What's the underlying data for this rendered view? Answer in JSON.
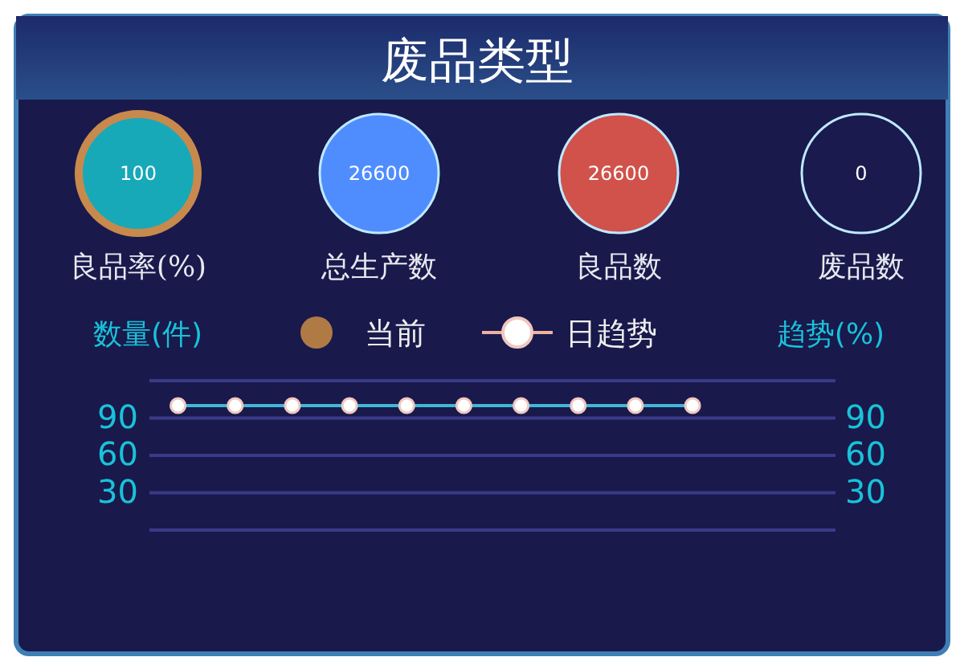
{
  "chart_data": [
    {
      "type": "other",
      "title": "废品类型",
      "categories": [
        "良品率(%)",
        "总生产数",
        "良品数",
        "废品数"
      ],
      "values": [
        100,
        26600,
        26600,
        0
      ],
      "data_labels": true,
      "colors": [
        "#17a9b8",
        "#4f8dff",
        "#d0524a",
        "#1a1a4e"
      ]
    },
    {
      "type": "line",
      "ylabel": "数量(件)",
      "y2label": "趋势(%)",
      "categories": [
        null,
        null,
        null,
        null,
        null,
        null,
        null,
        null,
        null,
        null,
        null,
        null
      ],
      "ylim": [
        0,
        120
      ],
      "yticks": [
        {
          "value": 0,
          "label": null
        },
        30,
        60,
        90,
        {
          "value": 120,
          "label": null
        }
      ],
      "y2lim": [
        0,
        120
      ],
      "y2ticks": [
        30,
        60,
        90
      ],
      "grid": "y",
      "legend": "top",
      "marker": "circle",
      "series": [
        {
          "name": "当前",
          "type": "bar",
          "color": "#b07a45",
          "values": [
            null,
            null,
            null,
            null,
            null,
            null,
            null,
            null,
            null,
            null,
            null,
            null
          ]
        },
        {
          "name": "日趋势",
          "type": "line",
          "color": "#3fb8d6",
          "values": [
            100,
            100,
            100,
            100,
            100,
            100,
            100,
            100,
            100,
            100,
            null,
            null
          ]
        }
      ]
    }
  ]
}
